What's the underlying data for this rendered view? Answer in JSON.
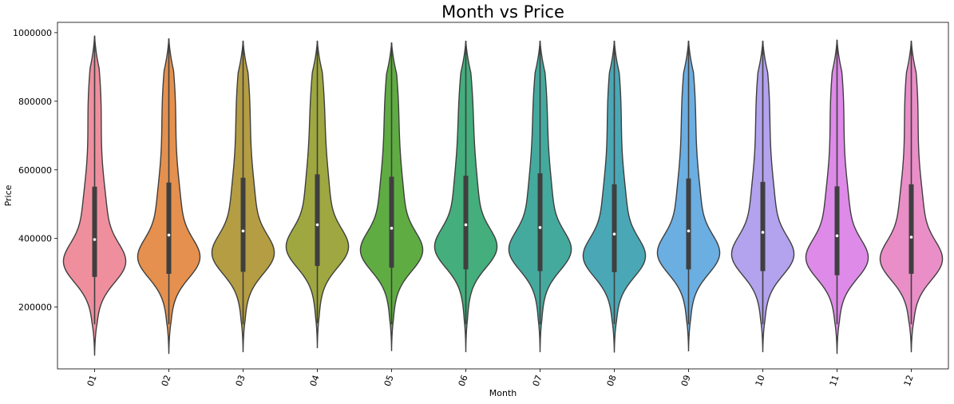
{
  "chart_data": {
    "type": "violin",
    "title": "Month vs Price",
    "xlabel": "Month",
    "ylabel": "Price",
    "ylim": [
      20000,
      1030000
    ],
    "yticks": [
      200000,
      400000,
      600000,
      800000,
      1000000
    ],
    "categories": [
      "01",
      "02",
      "03",
      "04",
      "05",
      "06",
      "07",
      "08",
      "09",
      "10",
      "11",
      "12"
    ],
    "colors": [
      "#ef8f9d",
      "#e5904e",
      "#b59d43",
      "#9fa840",
      "#5fad42",
      "#44ae7c",
      "#45aa9e",
      "#4aa8b6",
      "#6baee2",
      "#b3a2ee",
      "#de8ae8",
      "#ea8ec8"
    ],
    "violins": [
      {
        "category": "01",
        "min": 60000,
        "max": 990000,
        "whisker_low": 150000,
        "whisker_high": 990000,
        "q1": 288000,
        "median": 397000,
        "q3": 551000
      },
      {
        "category": "02",
        "min": 65000,
        "max": 982000,
        "whisker_low": 150000,
        "whisker_high": 982000,
        "q1": 297000,
        "median": 410000,
        "q3": 563000
      },
      {
        "category": "03",
        "min": 70000,
        "max": 975000,
        "whisker_low": 150000,
        "whisker_high": 975000,
        "q1": 303000,
        "median": 422000,
        "q3": 577000
      },
      {
        "category": "04",
        "min": 82000,
        "max": 975000,
        "whisker_low": 153000,
        "whisker_high": 975000,
        "q1": 320000,
        "median": 440000,
        "q3": 587000
      },
      {
        "category": "05",
        "min": 74000,
        "max": 970000,
        "whisker_low": 150000,
        "whisker_high": 970000,
        "q1": 315000,
        "median": 430000,
        "q3": 580000
      },
      {
        "category": "06",
        "min": 71000,
        "max": 975000,
        "whisker_low": 150000,
        "whisker_high": 975000,
        "q1": 310000,
        "median": 440000,
        "q3": 583000
      },
      {
        "category": "07",
        "min": 71000,
        "max": 975000,
        "whisker_low": 150000,
        "whisker_high": 975000,
        "q1": 305000,
        "median": 432000,
        "q3": 590000
      },
      {
        "category": "08",
        "min": 69000,
        "max": 975000,
        "whisker_low": 150000,
        "whisker_high": 975000,
        "q1": 302000,
        "median": 413000,
        "q3": 558000
      },
      {
        "category": "09",
        "min": 73000,
        "max": 975000,
        "whisker_low": 150000,
        "whisker_high": 975000,
        "q1": 310000,
        "median": 422000,
        "q3": 575000
      },
      {
        "category": "10",
        "min": 70000,
        "max": 975000,
        "whisker_low": 150000,
        "whisker_high": 975000,
        "q1": 305000,
        "median": 418000,
        "q3": 565000
      },
      {
        "category": "11",
        "min": 65000,
        "max": 978000,
        "whisker_low": 150000,
        "whisker_high": 978000,
        "q1": 293000,
        "median": 408000,
        "q3": 552000
      },
      {
        "category": "12",
        "min": 70000,
        "max": 975000,
        "whisker_low": 150000,
        "whisker_high": 975000,
        "q1": 297000,
        "median": 404000,
        "q3": 558000
      }
    ],
    "grid": false,
    "legend": "none"
  }
}
